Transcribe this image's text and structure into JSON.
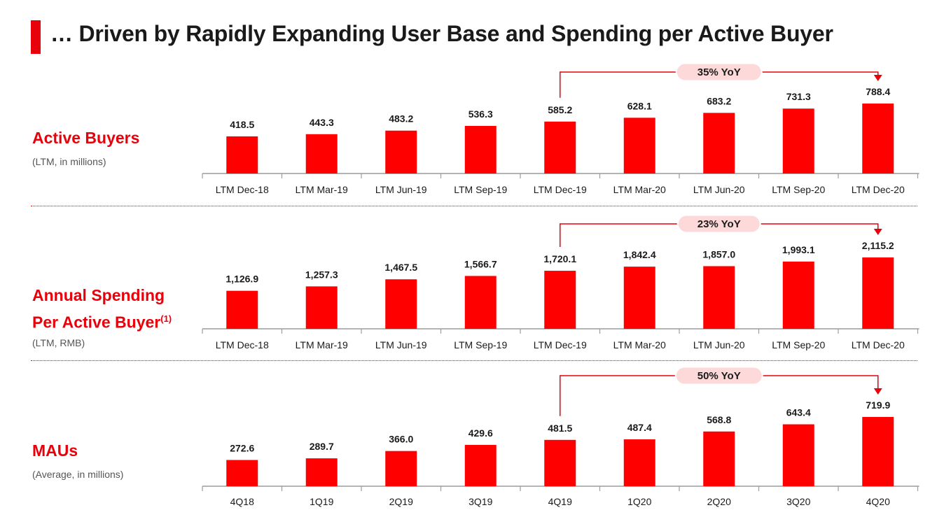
{
  "title": "… Driven by Rapidly Expanding User Base and Spending per Active Buyer",
  "colors": {
    "accent": "#e8000b",
    "bar": "#fe0000",
    "text": "#1a1a1a",
    "subtext": "#555555",
    "axis": "#9c9c9c",
    "badge_bg": "#fdd9d9"
  },
  "panels": [
    {
      "label": "Active Buyers",
      "label_sup": "",
      "sublabel": "(LTM, in millions)"
    },
    {
      "label": "Annual Spending Per Active Buyer",
      "label_line1": "Annual Spending",
      "label_line2": "Per Active Buyer",
      "label_sup": "(1)",
      "sublabel": "(LTM, RMB)"
    },
    {
      "label": "MAUs",
      "label_sup": "",
      "sublabel": "(Average, in millions)"
    }
  ],
  "chart_data": [
    {
      "type": "bar",
      "categories": [
        "LTM Dec-18",
        "LTM Mar-19",
        "LTM Jun-19",
        "LTM Sep-19",
        "LTM Dec-19",
        "LTM Mar-20",
        "LTM Jun-20",
        "LTM Sep-20",
        "LTM Dec-20"
      ],
      "values": [
        418.5,
        443.3,
        483.2,
        536.3,
        585.2,
        628.1,
        683.2,
        731.3,
        788.4
      ],
      "labels": [
        "418.5",
        "443.3",
        "483.2",
        "536.3",
        "585.2",
        "628.1",
        "683.2",
        "731.3",
        "788.4"
      ],
      "annotation": {
        "text": "35% YoY",
        "from": "LTM Dec-19",
        "to": "LTM Dec-20"
      }
    },
    {
      "type": "bar",
      "categories": [
        "LTM Dec-18",
        "LTM Mar-19",
        "LTM Jun-19",
        "LTM Sep-19",
        "LTM Dec-19",
        "LTM Mar-20",
        "LTM Jun-20",
        "LTM Sep-20",
        "LTM Dec-20"
      ],
      "values": [
        1126.9,
        1257.3,
        1467.5,
        1566.7,
        1720.1,
        1842.4,
        1857.0,
        1993.1,
        2115.2
      ],
      "labels": [
        "1,126.9",
        "1,257.3",
        "1,467.5",
        "1,566.7",
        "1,720.1",
        "1,842.4",
        "1,857.0",
        "1,993.1",
        "2,115.2"
      ],
      "annotation": {
        "text": "23% YoY",
        "from": "LTM Dec-19",
        "to": "LTM Dec-20"
      }
    },
    {
      "type": "bar",
      "categories": [
        "4Q18",
        "1Q19",
        "2Q19",
        "3Q19",
        "4Q19",
        "1Q20",
        "2Q20",
        "3Q20",
        "4Q20"
      ],
      "values": [
        272.6,
        289.7,
        366.0,
        429.6,
        481.5,
        487.4,
        568.8,
        643.4,
        719.9
      ],
      "labels": [
        "272.6",
        "289.7",
        "366.0",
        "429.6",
        "481.5",
        "487.4",
        "568.8",
        "643.4",
        "719.9"
      ],
      "annotation": {
        "text": "50% YoY",
        "from": "4Q19",
        "to": "4Q20"
      }
    }
  ]
}
